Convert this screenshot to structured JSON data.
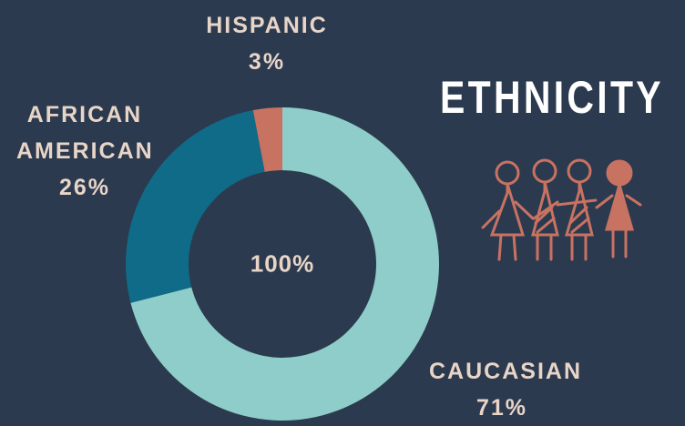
{
  "chart_data": {
    "type": "donut",
    "title": "ETHNICITY",
    "categories": [
      "CAUCASIAN",
      "AFRICAN AMERICAN",
      "HISPANIC"
    ],
    "values": [
      71,
      26,
      3
    ],
    "value_labels": [
      "71%",
      "26%",
      "3%"
    ],
    "colors": [
      "#8ecdc9",
      "#0f6b87",
      "#c87262"
    ],
    "center_label": "100%"
  }
}
